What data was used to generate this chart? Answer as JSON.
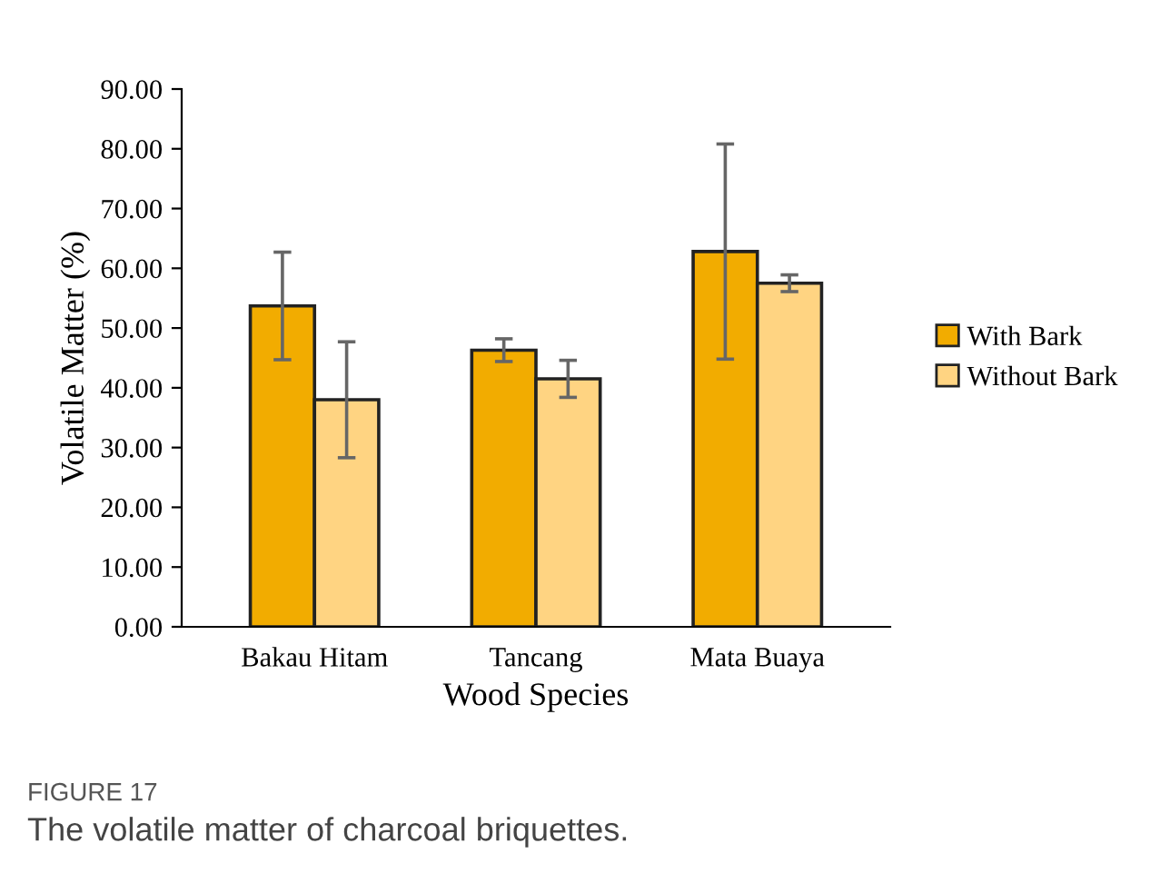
{
  "chart_data": {
    "type": "bar",
    "xlabel": "Wood Species",
    "ylabel": "Volatile Matter (%)",
    "categories": [
      "Bakau Hitam",
      "Tancang",
      "Mata Buaya"
    ],
    "series": [
      {
        "name": "With Bark",
        "color": "#f2ac00",
        "values": [
          53.7,
          46.3,
          62.8
        ],
        "errors": [
          9.0,
          1.9,
          18.0
        ]
      },
      {
        "name": "Without Bark",
        "color": "#ffd482",
        "values": [
          38.0,
          41.5,
          57.5
        ],
        "errors": [
          9.7,
          3.1,
          1.4
        ]
      }
    ],
    "ylim": [
      0,
      90
    ],
    "yticks": [
      {
        "value": 0,
        "label": "0.00"
      },
      {
        "value": 10,
        "label": "10.00"
      },
      {
        "value": 20,
        "label": "20.00"
      },
      {
        "value": 30,
        "label": "30.00"
      },
      {
        "value": 40,
        "label": "40.00"
      },
      {
        "value": 50,
        "label": "50.00"
      },
      {
        "value": 60,
        "label": "60.00"
      },
      {
        "value": 70,
        "label": "70.00"
      },
      {
        "value": 80,
        "label": "80.00"
      },
      {
        "value": 90,
        "label": "90.00"
      }
    ],
    "grid": false,
    "legend": "right",
    "annotations": [
      "FIGURE 17",
      "The volatile matter of charcoal briquettes."
    ]
  }
}
